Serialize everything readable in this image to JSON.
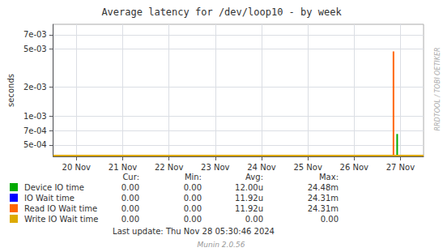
{
  "chart_data": {
    "type": "line",
    "title": "Average latency for /dev/loop10 - by week",
    "ylabel": "seconds",
    "log": "y",
    "grid": true,
    "xlim": [
      -0.5,
      7.5
    ],
    "xticks": [
      {
        "value": 0,
        "label": "20 Nov"
      },
      {
        "value": 1,
        "label": "21 Nov"
      },
      {
        "value": 2,
        "label": "22 Nov"
      },
      {
        "value": 3,
        "label": "23 Nov"
      },
      {
        "value": 4,
        "label": "24 Nov"
      },
      {
        "value": 5,
        "label": "25 Nov"
      },
      {
        "value": 6,
        "label": "26 Nov"
      },
      {
        "value": 7,
        "label": "27 Nov"
      }
    ],
    "ylim": [
      0.00038,
      0.009
    ],
    "yticks": [
      {
        "value": 0.0005,
        "label": "5e-04"
      },
      {
        "value": 0.0007,
        "label": "7e-04"
      },
      {
        "value": 0.001,
        "label": "1e-03"
      },
      {
        "value": 0.002,
        "label": "2e-03"
      },
      {
        "value": 0.005,
        "label": "5e-03"
      },
      {
        "value": 0.007,
        "label": "7e-03"
      }
    ],
    "legend_columns": [
      "Cur:",
      "Min:",
      "Avg:",
      "Max:"
    ],
    "series": [
      {
        "name": "Device IO time",
        "color": "#00aa00",
        "x": [
          6.93,
          6.93
        ],
        "values": [
          0.00038,
          0.00065
        ],
        "stats": [
          "0.00",
          "0.00",
          "12.00u",
          "24.48m"
        ]
      },
      {
        "name": "IO Wait time",
        "color": "#0000ff",
        "x": [],
        "values": [],
        "stats": [
          "0.00",
          "0.00",
          "11.92u",
          "24.31m"
        ]
      },
      {
        "name": "Read IO Wait time",
        "color": "#ff6600",
        "x": [
          6.85,
          6.85
        ],
        "values": [
          0.00038,
          0.0047
        ],
        "stats": [
          "0.00",
          "0.00",
          "11.92u",
          "24.31m"
        ]
      },
      {
        "name": "Write IO Wait time",
        "color": "#ddaa00",
        "x": [
          -0.5,
          7.5
        ],
        "values": [
          0.0003876,
          0.0003876
        ],
        "stats": [
          "0.00",
          "0.00",
          "0.00",
          "0.00"
        ]
      }
    ],
    "annotations": [
      "Last update: Thu Nov 28 05:30:46 2024",
      "Munin 2.0.56",
      "RRDTOOL / TOBI OETIKER"
    ]
  }
}
